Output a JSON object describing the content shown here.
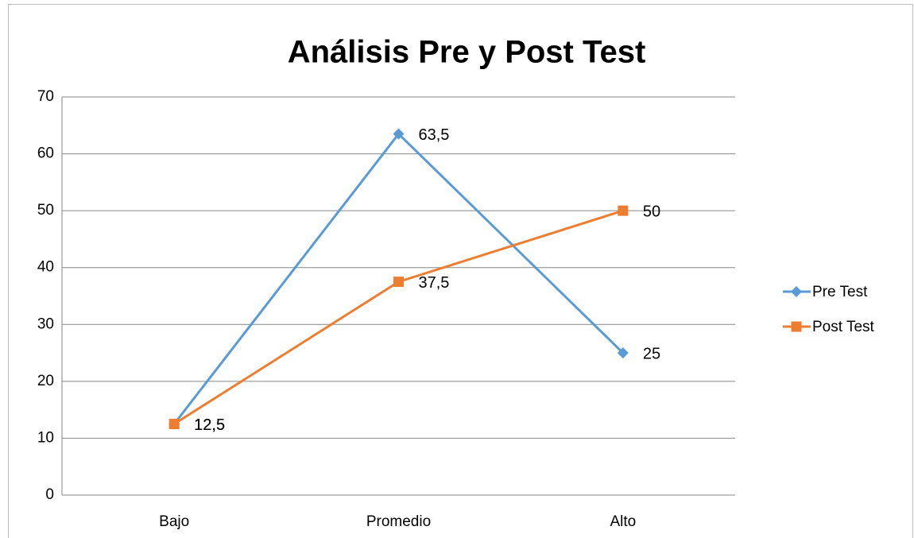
{
  "chart_data": {
    "type": "line",
    "title": "Análisis Pre y Post Test",
    "categories": [
      "Bajo",
      "Promedio",
      "Alto"
    ],
    "series": [
      {
        "name": "Pre Test",
        "color": "#5b9bd5",
        "marker": "diamond",
        "values": [
          12.5,
          63.5,
          25
        ],
        "value_labels": [
          "12,5",
          "63,5",
          "25"
        ]
      },
      {
        "name": "Post Test",
        "color": "#ed7d31",
        "marker": "square",
        "values": [
          12.5,
          37.5,
          50
        ],
        "value_labels": [
          "12,5",
          "37,5",
          "50"
        ]
      }
    ],
    "ylim": [
      0,
      70
    ],
    "yticks": [
      0,
      10,
      20,
      30,
      40,
      50,
      60,
      70
    ],
    "grid": true,
    "legend": "right"
  }
}
